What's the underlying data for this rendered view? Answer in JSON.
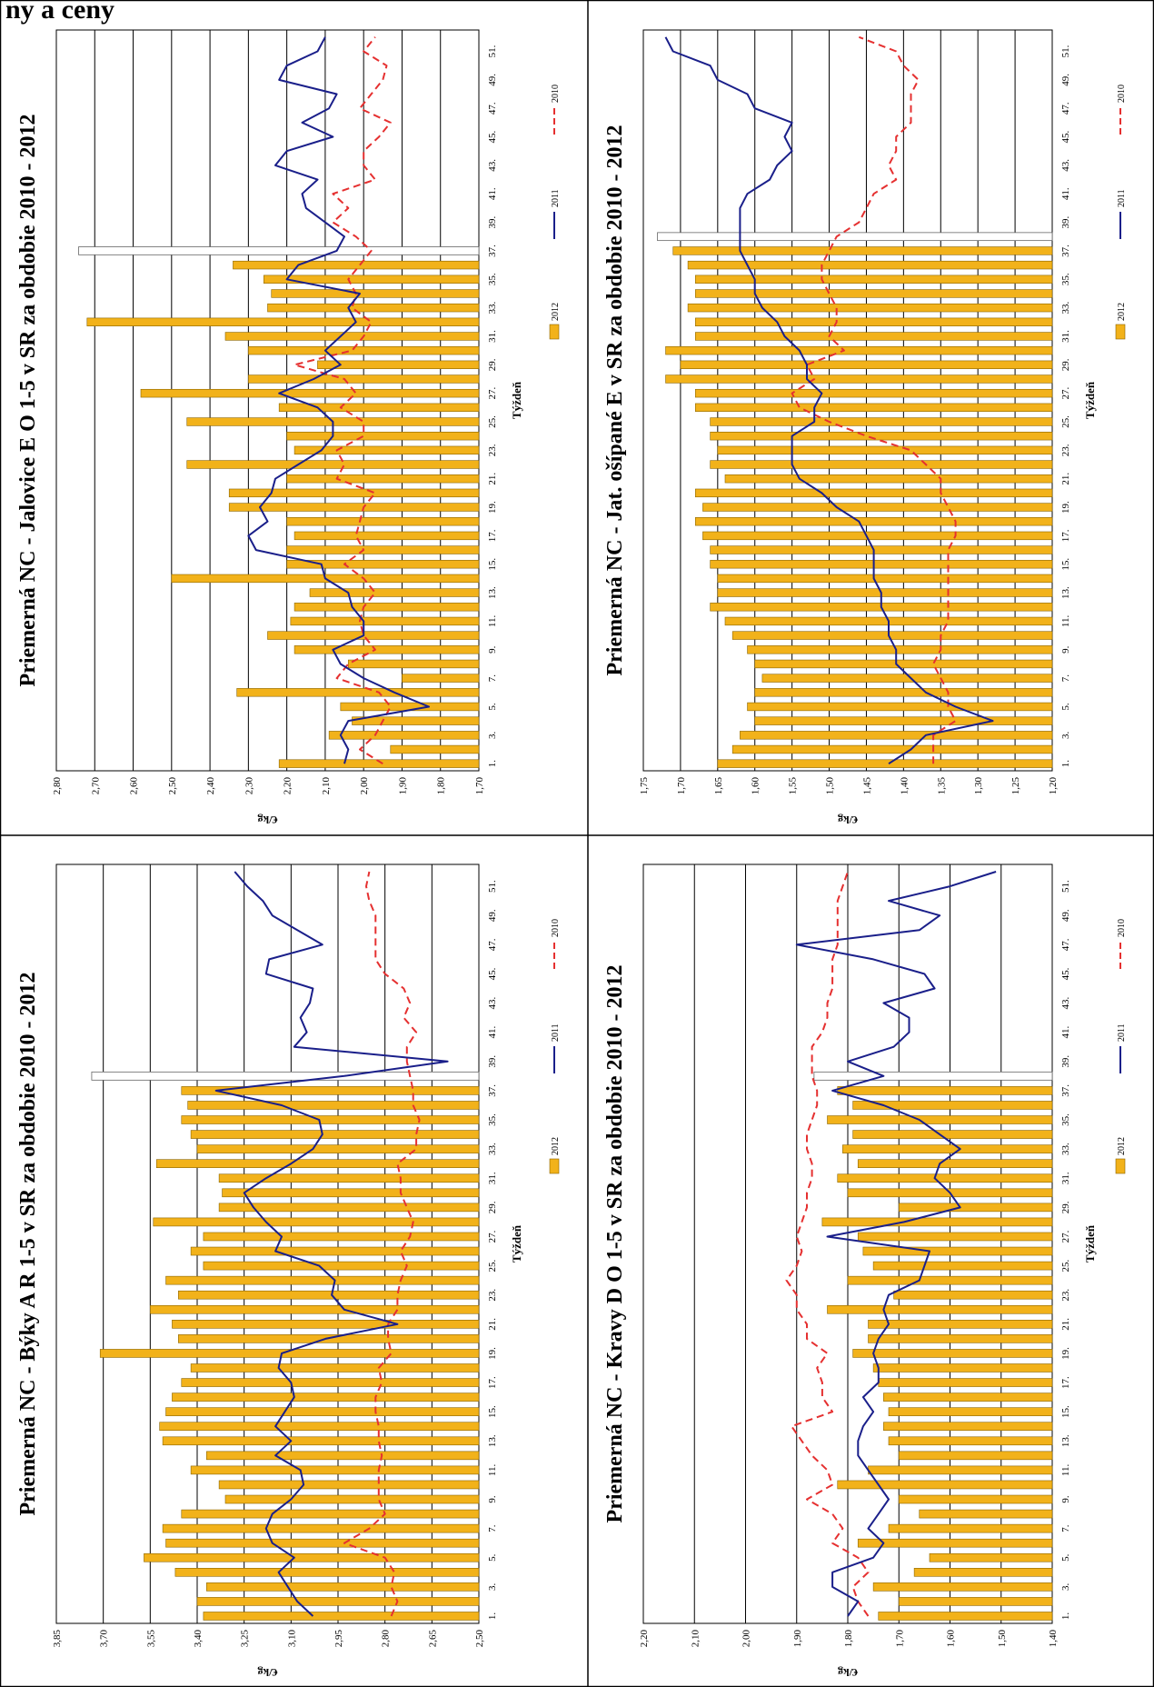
{
  "page": {
    "heading": "ny a ceny",
    "panel_count": 4
  },
  "colors": {
    "bar_fill": "#F2B21A",
    "bar_stroke": "#8A6400",
    "line_2011": "#1A1F8A",
    "line_2010": "#E53030",
    "grid": "#000000"
  },
  "chart_data": [
    {
      "type": "bar",
      "title": "Priemerná NC  -  Býky A R 1-5 v SR za obdobie 2010 - 2012",
      "xlabel": "Týždeň",
      "ylabel": "€/kg",
      "ylim": [
        2.5,
        3.85
      ],
      "yticks": [
        "2,50",
        "2,65",
        "2,80",
        "2,95",
        "3,10",
        "3,25",
        "3,40",
        "3,55",
        "3,70",
        "3,85"
      ],
      "xticks": [
        "1.",
        "3.",
        "5.",
        "7.",
        "9.",
        "11.",
        "13.",
        "15.",
        "17.",
        "19.",
        "21.",
        "23.",
        "25.",
        "27.",
        "29.",
        "31.",
        "33.",
        "35.",
        "37.",
        "39.",
        "41.",
        "43.",
        "45.",
        "47.",
        "49.",
        "51."
      ],
      "legend": [
        "2012",
        "2011",
        "2010"
      ],
      "series": [
        {
          "name": "2012",
          "type": "bar",
          "values": [
            3.38,
            3.4,
            3.37,
            3.47,
            3.57,
            3.5,
            3.51,
            3.45,
            3.31,
            3.33,
            3.42,
            3.37,
            3.51,
            3.52,
            3.5,
            3.48,
            3.45,
            3.42,
            3.71,
            3.46,
            3.48,
            3.55,
            3.46,
            3.5,
            3.38,
            3.42,
            3.38,
            3.54,
            3.33,
            3.32,
            3.33,
            3.53,
            3.4,
            3.42,
            3.45,
            3.43,
            3.45
          ]
        },
        {
          "name": "2011",
          "type": "line",
          "values": [
            3.03,
            3.08,
            3.11,
            3.14,
            3.09,
            3.16,
            3.18,
            3.16,
            3.1,
            3.06,
            3.07,
            3.15,
            3.1,
            3.15,
            3.12,
            3.09,
            3.1,
            3.14,
            3.13,
            2.99,
            2.76,
            2.93,
            2.97,
            2.96,
            3.01,
            3.15,
            3.13,
            3.18,
            3.22,
            3.25,
            3.18,
            3.1,
            3.03,
            3.0,
            3.01,
            3.13,
            3.34,
            2.93,
            2.6,
            3.09,
            3.05,
            3.07,
            3.04,
            3.03,
            3.18,
            3.17,
            3.0,
            3.08,
            3.16,
            3.19,
            3.24,
            3.28
          ]
        },
        {
          "name": "2010",
          "type": "line",
          "values": [
            2.78,
            2.76,
            2.78,
            2.77,
            2.8,
            2.93,
            2.85,
            2.8,
            2.82,
            2.82,
            2.82,
            2.81,
            2.82,
            2.82,
            2.83,
            2.83,
            2.81,
            2.82,
            2.78,
            2.79,
            2.79,
            2.76,
            2.76,
            2.75,
            2.73,
            2.75,
            2.72,
            2.71,
            2.73,
            2.75,
            2.75,
            2.76,
            2.7,
            2.7,
            2.69,
            2.71,
            2.71,
            2.72,
            2.73,
            2.73,
            2.7,
            2.74,
            2.72,
            2.74,
            2.8,
            2.83,
            2.83,
            2.83,
            2.83,
            2.85,
            2.86,
            2.85
          ]
        }
      ]
    },
    {
      "type": "bar",
      "title": "Priemerná NC  -  Kravy D O 1-5 v SR za obdobie 2010 - 2012",
      "xlabel": "Týždeň",
      "ylabel": "€/kg",
      "ylim": [
        1.4,
        2.2
      ],
      "yticks": [
        "1,40",
        "1,50",
        "1,60",
        "1,70",
        "1,80",
        "1,90",
        "2,00",
        "2,10",
        "2,20"
      ],
      "xticks": [
        "1.",
        "3.",
        "5.",
        "7.",
        "9.",
        "11.",
        "13.",
        "15.",
        "17.",
        "19.",
        "21.",
        "23.",
        "25.",
        "27.",
        "29.",
        "31.",
        "33.",
        "35.",
        "37.",
        "39.",
        "41.",
        "43.",
        "45.",
        "47.",
        "49.",
        "51."
      ],
      "legend": [
        "2012",
        "2011",
        "2010"
      ],
      "series": [
        {
          "name": "2012",
          "type": "bar",
          "values": [
            1.74,
            1.7,
            1.75,
            1.67,
            1.64,
            1.78,
            1.72,
            1.66,
            1.7,
            1.82,
            1.76,
            1.7,
            1.72,
            1.73,
            1.72,
            1.73,
            1.74,
            1.75,
            1.79,
            1.76,
            1.76,
            1.84,
            1.71,
            1.8,
            1.75,
            1.77,
            1.78,
            1.85,
            1.7,
            1.8,
            1.82,
            1.78,
            1.81,
            1.79,
            1.84,
            1.79,
            1.82
          ]
        },
        {
          "name": "2011",
          "type": "line",
          "values": [
            1.8,
            1.78,
            1.83,
            1.83,
            1.75,
            1.73,
            1.76,
            1.74,
            1.72,
            1.74,
            1.76,
            1.78,
            1.78,
            1.77,
            1.75,
            1.77,
            1.74,
            1.74,
            1.75,
            1.74,
            1.72,
            1.73,
            1.72,
            1.66,
            1.65,
            1.64,
            1.84,
            1.69,
            1.58,
            1.6,
            1.63,
            1.62,
            1.58,
            1.62,
            1.66,
            1.73,
            1.83,
            1.73,
            1.8,
            1.71,
            1.68,
            1.68,
            1.73,
            1.63,
            1.65,
            1.75,
            1.9,
            1.66,
            1.62,
            1.72,
            1.6,
            1.51
          ]
        },
        {
          "name": "2010",
          "type": "line",
          "values": [
            1.76,
            1.78,
            1.79,
            1.76,
            1.78,
            1.83,
            1.81,
            1.83,
            1.88,
            1.83,
            1.84,
            1.87,
            1.89,
            1.91,
            1.83,
            1.85,
            1.85,
            1.86,
            1.84,
            1.88,
            1.88,
            1.9,
            1.9,
            1.92,
            1.9,
            1.89,
            1.9,
            1.89,
            1.88,
            1.88,
            1.87,
            1.87,
            1.88,
            1.88,
            1.87,
            1.86,
            1.86,
            1.87,
            1.87,
            1.87,
            1.85,
            1.84,
            1.84,
            1.83,
            1.83,
            1.83,
            1.82,
            1.82,
            1.82,
            1.82,
            1.81,
            1.8
          ]
        }
      ]
    },
    {
      "type": "bar",
      "title": "Priemerná NC  -  Jalovice E O 1-5 v SR za obdobie 2010 - 2012",
      "xlabel": "Týždeň",
      "ylabel": "€/kg",
      "ylim": [
        1.7,
        2.8
      ],
      "yticks": [
        "1,70",
        "1,80",
        "1,90",
        "2,00",
        "2,10",
        "2,20",
        "2,30",
        "2,40",
        "2,50",
        "2,60",
        "2,70",
        "2,80"
      ],
      "xticks": [
        "1.",
        "3.",
        "5.",
        "7.",
        "9.",
        "11.",
        "13.",
        "15.",
        "17.",
        "19.",
        "21.",
        "23.",
        "25.",
        "27.",
        "29.",
        "31.",
        "33.",
        "35.",
        "37.",
        "39.",
        "41.",
        "43.",
        "45.",
        "47.",
        "49.",
        "51."
      ],
      "legend": [
        "2012",
        "2011",
        "2010"
      ],
      "series": [
        {
          "name": "2012",
          "type": "bar",
          "values": [
            2.22,
            1.93,
            2.09,
            2.03,
            2.06,
            2.33,
            1.9,
            2.04,
            2.18,
            2.25,
            2.19,
            2.18,
            2.14,
            2.5,
            2.2,
            2.2,
            2.18,
            2.2,
            2.35,
            2.35,
            2.2,
            2.46,
            2.18,
            2.2,
            2.46,
            2.22,
            2.58,
            2.3,
            2.12,
            2.3,
            2.36,
            2.72,
            2.25,
            2.24,
            2.26,
            2.34
          ]
        },
        {
          "name": "2011",
          "type": "line",
          "values": [
            2.05,
            2.04,
            2.06,
            2.04,
            1.83,
            1.92,
            2.0,
            2.06,
            2.08,
            2.0,
            2.0,
            2.03,
            2.04,
            2.1,
            2.11,
            2.28,
            2.3,
            2.25,
            2.27,
            2.24,
            2.23,
            2.17,
            2.11,
            2.08,
            2.08,
            2.12,
            2.22,
            2.13,
            2.06,
            2.1,
            2.06,
            2.02,
            2.04,
            2.01,
            2.2,
            2.17,
            2.07,
            2.05,
            2.1,
            2.15,
            2.16,
            2.12,
            2.23,
            2.2,
            2.08,
            2.16,
            2.09,
            2.07,
            2.22,
            2.2,
            2.12,
            2.1
          ]
        },
        {
          "name": "2010",
          "type": "line",
          "values": [
            1.95,
            2.01,
            1.97,
            1.95,
            1.93,
            1.96,
            2.07,
            2.04,
            1.97,
            2.0,
            2.01,
            2.0,
            1.97,
            2.0,
            2.05,
            2.0,
            2.02,
            2.01,
            2.0,
            1.97,
            2.07,
            2.05,
            2.07,
            2.0,
            2.0,
            2.06,
            2.02,
            2.05,
            2.18,
            2.03,
            2.0,
            1.98,
            2.03,
            2.02,
            2.04,
            2.01,
            1.98,
            2.02,
            2.08,
            2.04,
            2.08,
            1.97,
            2.0,
            2.0,
            1.96,
            1.93,
            2.01,
            1.98,
            1.95,
            1.94,
            2.0,
            1.97
          ]
        }
      ]
    },
    {
      "type": "bar",
      "title": "Priemerná NC  -  Jat. ošípané E v SR za obdobie 2010 - 2012",
      "xlabel": "Týždeň",
      "ylabel": "€/kg",
      "ylim": [
        1.2,
        1.75
      ],
      "yticks": [
        "1,20",
        "1,25",
        "1,30",
        "1,35",
        "1,40",
        "1,45",
        "1,50",
        "1,55",
        "1,60",
        "1,65",
        "1,70",
        "1,75"
      ],
      "xticks": [
        "1.",
        "3.",
        "5.",
        "7.",
        "9.",
        "11.",
        "13.",
        "15.",
        "17.",
        "19.",
        "21.",
        "23.",
        "25.",
        "27.",
        "29.",
        "31.",
        "33.",
        "35.",
        "37.",
        "39.",
        "41.",
        "43.",
        "45.",
        "47.",
        "49.",
        "51."
      ],
      "legend": [
        "2012",
        "2011",
        "2010"
      ],
      "series": [
        {
          "name": "2012",
          "type": "bar",
          "values": [
            1.65,
            1.63,
            1.62,
            1.6,
            1.61,
            1.6,
            1.59,
            1.6,
            1.61,
            1.63,
            1.64,
            1.66,
            1.65,
            1.65,
            1.66,
            1.66,
            1.67,
            1.68,
            1.67,
            1.68,
            1.64,
            1.66,
            1.65,
            1.66,
            1.66,
            1.68,
            1.68,
            1.72,
            1.7,
            1.72,
            1.68,
            1.68,
            1.69,
            1.68,
            1.68,
            1.69,
            1.71
          ]
        },
        {
          "name": "2011",
          "type": "line",
          "values": [
            1.42,
            1.39,
            1.37,
            1.28,
            1.33,
            1.37,
            1.39,
            1.41,
            1.41,
            1.42,
            1.42,
            1.43,
            1.43,
            1.44,
            1.44,
            1.44,
            1.45,
            1.46,
            1.49,
            1.51,
            1.54,
            1.55,
            1.55,
            1.55,
            1.52,
            1.52,
            1.51,
            1.53,
            1.53,
            1.54,
            1.56,
            1.57,
            1.59,
            1.6,
            1.6,
            1.61,
            1.62,
            1.62,
            1.62,
            1.62,
            1.61,
            1.58,
            1.57,
            1.55,
            1.56,
            1.55,
            1.6,
            1.61,
            1.65,
            1.66,
            1.71,
            1.72
          ]
        },
        {
          "name": "2010",
          "type": "line",
          "values": [
            1.36,
            1.36,
            1.36,
            1.33,
            1.34,
            1.34,
            1.35,
            1.36,
            1.35,
            1.35,
            1.34,
            1.34,
            1.34,
            1.34,
            1.34,
            1.34,
            1.33,
            1.33,
            1.34,
            1.35,
            1.35,
            1.37,
            1.39,
            1.45,
            1.5,
            1.54,
            1.55,
            1.52,
            1.53,
            1.48,
            1.5,
            1.49,
            1.49,
            1.5,
            1.51,
            1.51,
            1.5,
            1.49,
            1.46,
            1.45,
            1.44,
            1.41,
            1.42,
            1.41,
            1.41,
            1.39,
            1.39,
            1.39,
            1.38,
            1.4,
            1.41,
            1.46
          ]
        }
      ]
    }
  ]
}
